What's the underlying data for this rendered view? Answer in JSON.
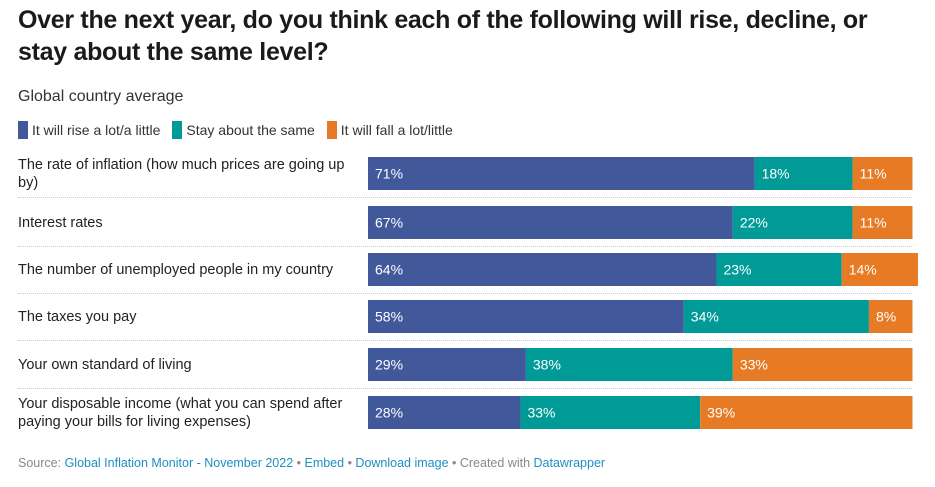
{
  "title": "Over the next year, do you think each of the following will rise, decline, or stay about the same level?",
  "subtitle": "Global country average",
  "colors": {
    "rise": "#41599b",
    "same": "#009b97",
    "fall": "#e77b25"
  },
  "chart_data": {
    "type": "bar",
    "orientation": "horizontal",
    "stacked": true,
    "title": "Over the next year, do you think each of the following will rise, decline, or stay about the same level?",
    "subtitle": "Global country average",
    "xlim": [
      0,
      100
    ],
    "legend_position": "top-left",
    "categories": [
      "The rate of inflation (how much prices are going up by)",
      "Interest rates",
      "The number of unemployed people in my country",
      "The taxes you pay",
      "Your own standard of living",
      "Your disposable income (what you can spend after paying your bills for living expenses)"
    ],
    "series": [
      {
        "name": "It will rise a lot/a little",
        "color": "#41599b",
        "values": [
          71,
          67,
          64,
          58,
          29,
          28
        ],
        "labels": [
          "71%",
          "67%",
          "64%",
          "58%",
          "29%",
          "28%"
        ]
      },
      {
        "name": "Stay about the same",
        "color": "#009b97",
        "values": [
          18,
          22,
          23,
          34,
          38,
          33
        ],
        "labels": [
          "18%",
          "22%",
          "23%",
          "34%",
          "38%",
          "33%"
        ]
      },
      {
        "name": "It will fall a lot/little",
        "color": "#e77b25",
        "values": [
          11,
          11,
          14,
          8,
          33,
          39
        ],
        "labels": [
          "11%",
          "11%",
          "14%",
          "8%",
          "33%",
          "39%"
        ]
      }
    ]
  },
  "footer": {
    "source_prefix": "Source: ",
    "source_link": "Global Inflation Monitor - November 2022",
    "sep1": " • ",
    "embed": "Embed",
    "sep2": " • ",
    "download": "Download image",
    "sep3": " • Created with ",
    "datawrapper": "Datawrapper"
  }
}
